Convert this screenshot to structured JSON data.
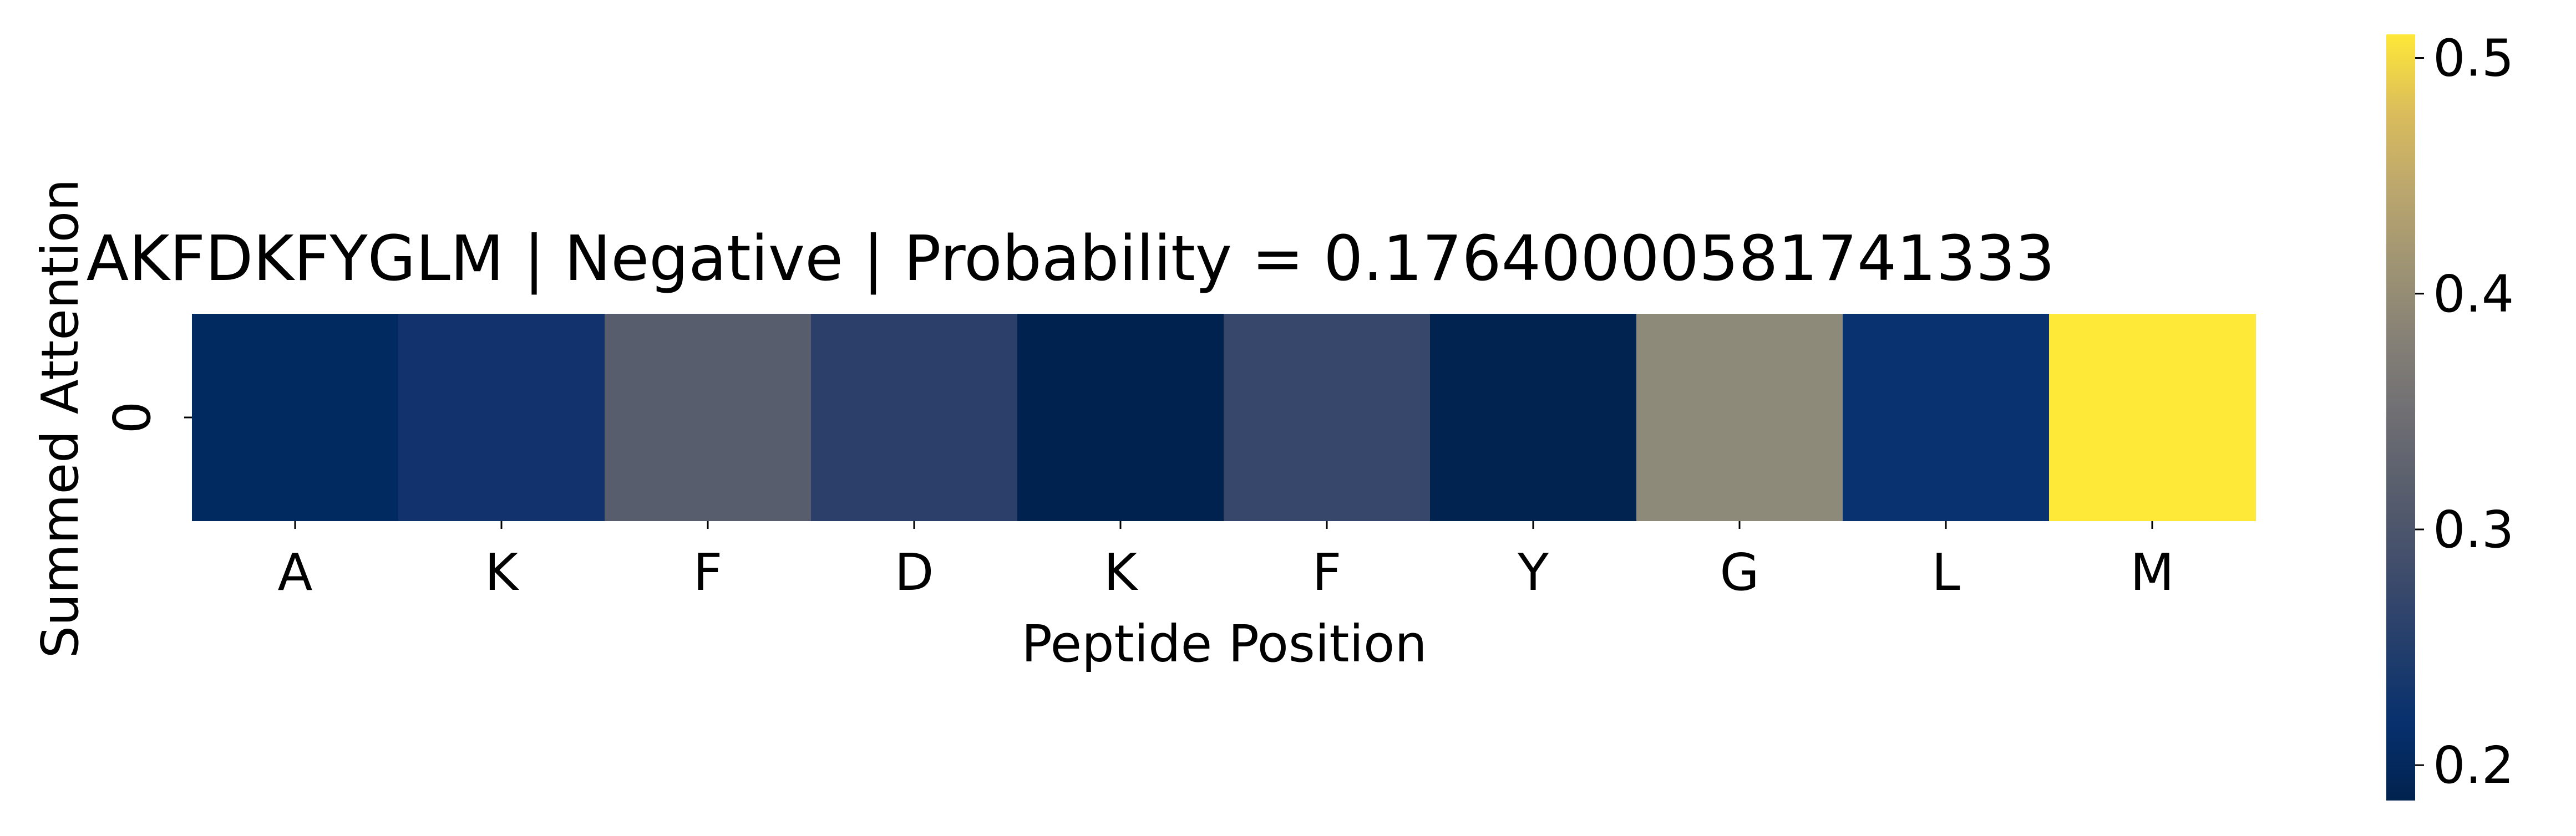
{
  "chart_data": {
    "type": "heatmap",
    "title": "AKFDKFYGLM | Negative | Probability = 0.17640000581741333",
    "xlabel": "Peptide Position",
    "ylabel": "Summed Attention",
    "x_categories": [
      "A",
      "K",
      "F",
      "D",
      "K",
      "F",
      "Y",
      "G",
      "L",
      "M"
    ],
    "y_categories": [
      "0"
    ],
    "values": [
      [
        0.195,
        0.215,
        0.3,
        0.25,
        0.185,
        0.265,
        0.187,
        0.385,
        0.205,
        0.51
      ]
    ],
    "colormap": "cividis",
    "vmin": 0.185,
    "vmax": 0.51,
    "colorbar_ticks": [
      0.2,
      0.3,
      0.4,
      0.5
    ],
    "colorbar_tick_labels": [
      "0.2",
      "0.3",
      "0.4",
      "0.5"
    ],
    "cell_colors": [
      "#012a60",
      "#11326d",
      "#575d6d",
      "#2c3f6b",
      "#00224e",
      "#37476c",
      "#00234f",
      "#8e8a79",
      "#093270",
      "#fee838"
    ],
    "grid": false
  }
}
